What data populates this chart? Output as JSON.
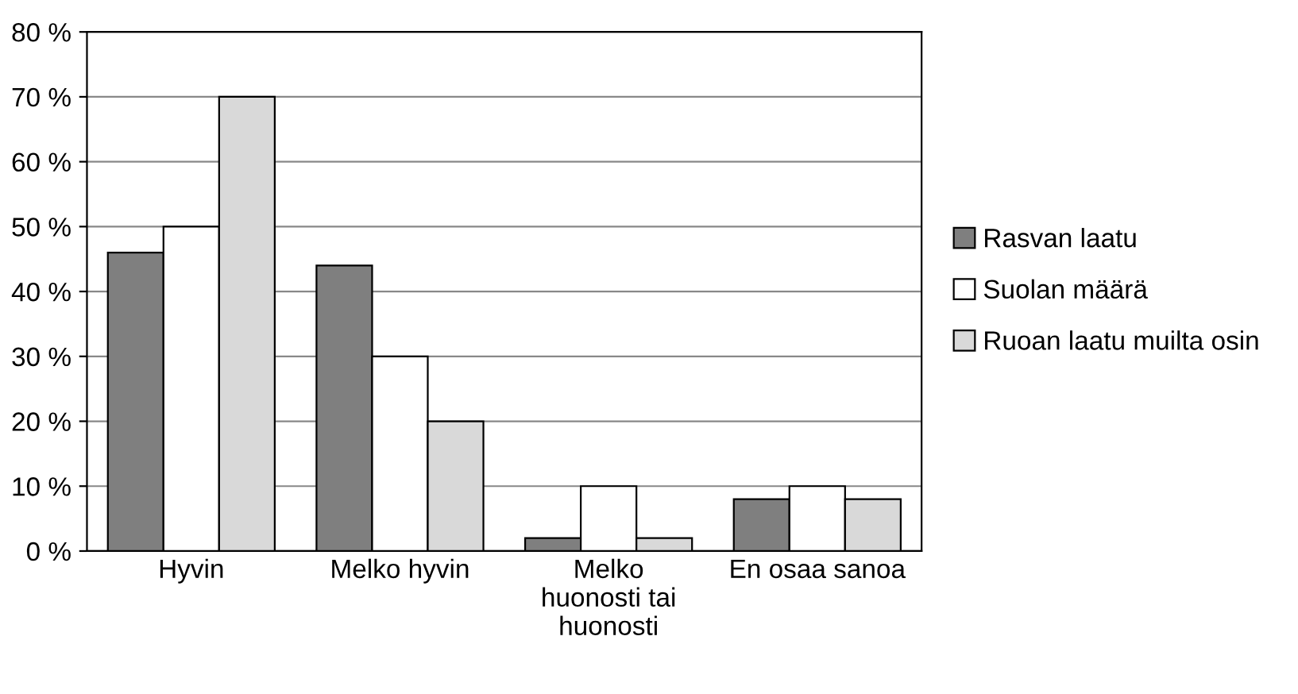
{
  "chart_data": {
    "type": "bar",
    "categories": [
      "Hyvin",
      "Melko hyvin",
      "Melko\nhuonosti tai\nhuonosti",
      "En osaa sanoa"
    ],
    "series": [
      {
        "name": "Rasvan laatu",
        "color": "#7f7f7f",
        "values": [
          46,
          44,
          2,
          8
        ]
      },
      {
        "name": "Suolan määrä",
        "color": "#ffffff",
        "values": [
          50,
          30,
          10,
          10
        ]
      },
      {
        "name": "Ruoan laatu muilta osin",
        "color": "#d9d9d9",
        "values": [
          70,
          20,
          2,
          8
        ]
      }
    ],
    "ylim": [
      0,
      80
    ],
    "yticks": [
      {
        "value": 0,
        "label": "0 %"
      },
      {
        "value": 10,
        "label": "10 %"
      },
      {
        "value": 20,
        "label": "20 %"
      },
      {
        "value": 30,
        "label": "30 %"
      },
      {
        "value": 40,
        "label": "40 %"
      },
      {
        "value": 50,
        "label": "50 %"
      },
      {
        "value": 60,
        "label": "60 %"
      },
      {
        "value": 70,
        "label": "70 %"
      },
      {
        "value": 80,
        "label": "80 %"
      }
    ],
    "grid": "y",
    "legend": "right"
  }
}
